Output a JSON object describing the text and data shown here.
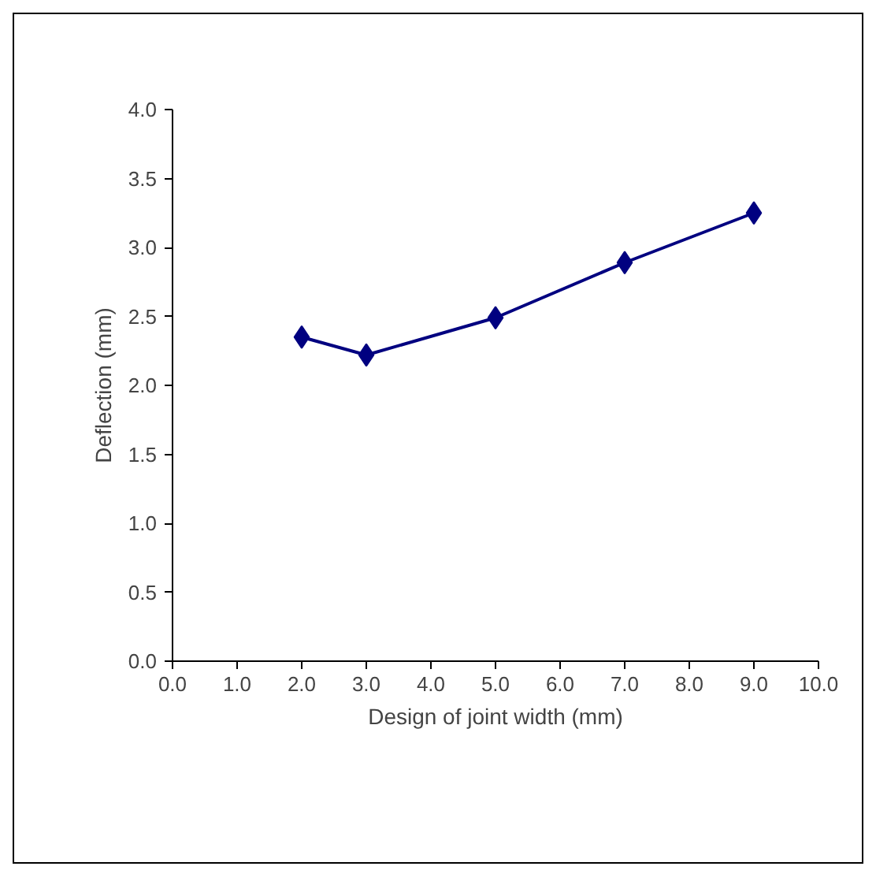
{
  "chart_data": {
    "type": "line",
    "xlabel": "Design of joint width (mm)",
    "ylabel": "Deflection (mm)",
    "x": [
      2,
      3,
      5,
      7,
      9
    ],
    "series": [
      {
        "color": "#000080",
        "values": [
          2.35,
          2.22,
          2.49,
          2.89,
          3.25
        ]
      }
    ],
    "xlim": [
      0,
      10
    ],
    "xticks": [
      {
        "value": 0,
        "label": "0.0"
      },
      {
        "value": 1,
        "label": "1.0"
      },
      {
        "value": 2,
        "label": "2.0"
      },
      {
        "value": 3,
        "label": "3.0"
      },
      {
        "value": 4,
        "label": "4.0"
      },
      {
        "value": 5,
        "label": "5.0"
      },
      {
        "value": 6,
        "label": "6.0"
      },
      {
        "value": 7,
        "label": "7.0"
      },
      {
        "value": 8,
        "label": "8.0"
      },
      {
        "value": 9,
        "label": "9.0"
      },
      {
        "value": 10,
        "label": "10.0"
      }
    ],
    "ylim": [
      0,
      4
    ],
    "yticks": [
      {
        "value": 0,
        "label": "0.0"
      },
      {
        "value": 0.5,
        "label": "0.5"
      },
      {
        "value": 1,
        "label": "1.0"
      },
      {
        "value": 1.5,
        "label": "1.5"
      },
      {
        "value": 2,
        "label": "2.0"
      },
      {
        "value": 2.5,
        "label": "2.5"
      },
      {
        "value": 3,
        "label": "3.0"
      },
      {
        "value": 3.5,
        "label": "3.5"
      },
      {
        "value": 4,
        "label": "4.0"
      }
    ],
    "grid": false,
    "marker": "diamond",
    "line_style": "solid"
  }
}
